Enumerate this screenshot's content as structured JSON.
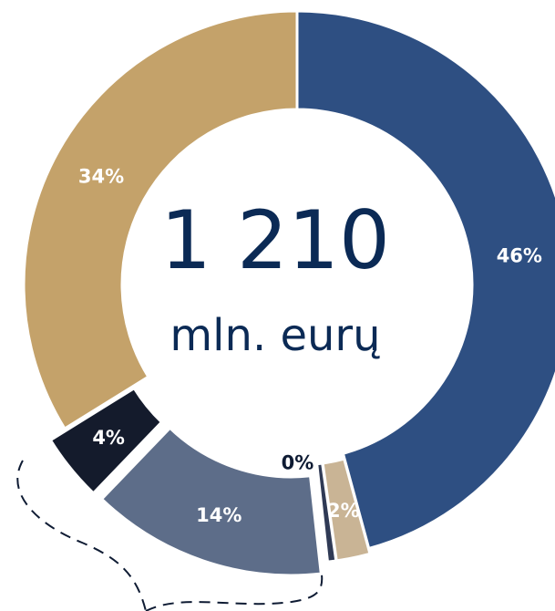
{
  "chart_data": {
    "type": "pie",
    "center_value": "1 210",
    "center_unit": "mln. eurų",
    "slices": [
      {
        "label": "46%",
        "value": 46,
        "color": "#2e4f82",
        "label_color": "#ffffff"
      },
      {
        "label": "2%",
        "value": 2,
        "color": "#c9b495",
        "label_color": "#ffffff"
      },
      {
        "label": "0%",
        "value": 0.5,
        "color": "#2f3a55",
        "label_color": "#0e1b33"
      },
      {
        "label": "14%",
        "value": 14,
        "color": "#5d6d89",
        "label_color": "#ffffff"
      },
      {
        "label": "4%",
        "value": 4,
        "color": "#141b2c",
        "label_color": "#ffffff"
      },
      {
        "label": "34%",
        "value": 34,
        "color": "#c4a26a",
        "label_color": "#ffffff"
      }
    ],
    "annotation_line_color": "#0e1b33"
  }
}
